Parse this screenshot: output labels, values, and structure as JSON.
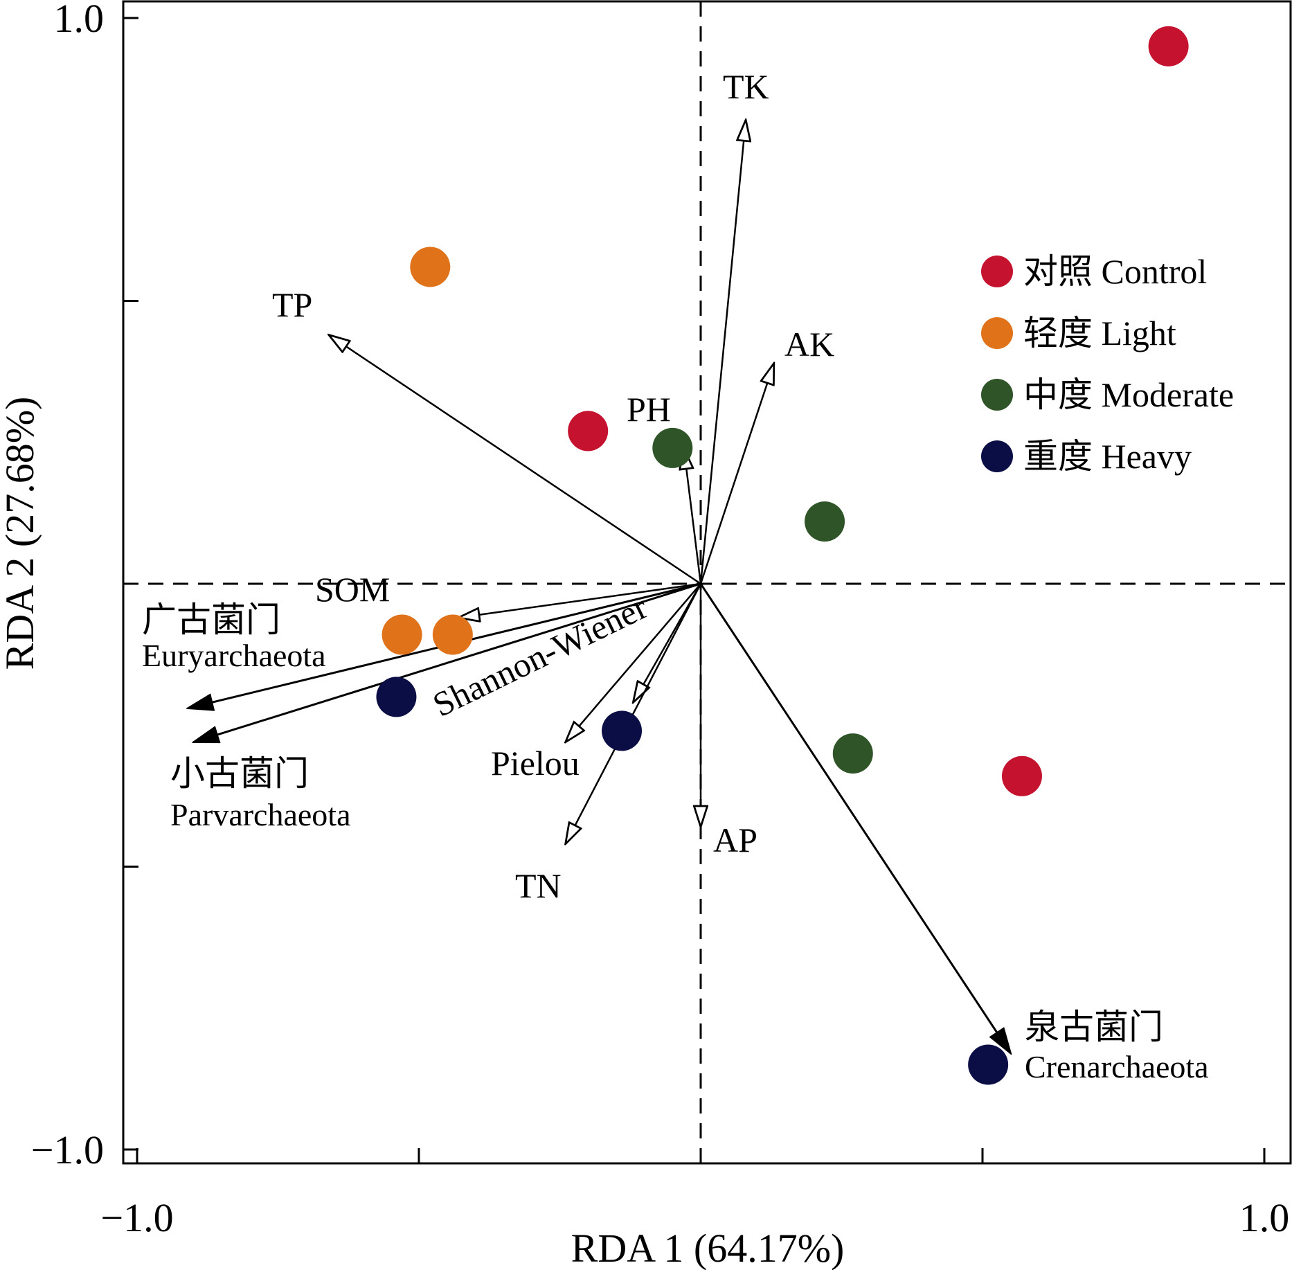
{
  "chart_data": {
    "type": "scatter",
    "subtype": "rda-biplot",
    "title": "",
    "xlabel": "RDA 1 (64.17%)",
    "ylabel": "RDA 2 (27.68%)",
    "xlim": [
      -1.0,
      1.0
    ],
    "ylim": [
      -1.0,
      1.0
    ],
    "x_tick_labels": [
      {
        "value": -1.0,
        "label": "−1.0"
      },
      {
        "value": 1.0,
        "label": "1.0"
      }
    ],
    "y_tick_labels": [
      {
        "value": 1.0,
        "label": "1.0"
      },
      {
        "value": -1.0,
        "label": "−1.0"
      }
    ],
    "x_minor_ticks": [
      -0.5,
      0.0,
      0.5
    ],
    "y_minor_ticks": [
      0.5,
      0.0,
      -0.5
    ],
    "grid": false,
    "reference_lines": {
      "x": 0.0,
      "y": 0.0,
      "style": "dashed"
    },
    "legend_position": "top-right",
    "series": [
      {
        "name": "对照 Control",
        "color": "#c4122f",
        "points": [
          {
            "x": 0.83,
            "y": 0.95
          },
          {
            "x": -0.2,
            "y": 0.27
          },
          {
            "x": 0.57,
            "y": -0.34
          }
        ]
      },
      {
        "name": "轻度 Light",
        "color": "#e0731a",
        "points": [
          {
            "x": -0.48,
            "y": 0.56
          },
          {
            "x": -0.53,
            "y": -0.09
          },
          {
            "x": -0.44,
            "y": -0.09
          }
        ]
      },
      {
        "name": "中度 Moderate",
        "color": "#2f5428",
        "points": [
          {
            "x": -0.05,
            "y": 0.24
          },
          {
            "x": 0.22,
            "y": 0.11
          },
          {
            "x": 0.27,
            "y": -0.3
          }
        ]
      },
      {
        "name": "重度 Heavy",
        "color": "#0b0e45",
        "points": [
          {
            "x": -0.54,
            "y": -0.2
          },
          {
            "x": -0.14,
            "y": -0.26
          },
          {
            "x": 0.51,
            "y": -0.85
          }
        ]
      }
    ],
    "environmental_arrows": [
      {
        "name": "TK",
        "x": 0.08,
        "y": 0.82
      },
      {
        "name": "AK",
        "x": 0.13,
        "y": 0.39
      },
      {
        "name": "PH",
        "x": -0.03,
        "y": 0.24
      },
      {
        "name": "TP",
        "x": -0.66,
        "y": 0.44
      },
      {
        "name": "SOM",
        "x": -0.43,
        "y": -0.06
      },
      {
        "name": "Shannon-Wiener",
        "x": -0.12,
        "y": -0.21
      },
      {
        "name": "Pielou",
        "x": -0.24,
        "y": -0.28
      },
      {
        "name": "TN",
        "x": -0.24,
        "y": -0.46
      },
      {
        "name": "AP",
        "x": 0.0,
        "y": -0.43
      }
    ],
    "species_arrows": [
      {
        "name_cn": "广古菌门",
        "name_en": "Euryarchaeota",
        "x": -0.91,
        "y": -0.22
      },
      {
        "name_cn": "小古菌门",
        "name_en": "Parvarchaeota",
        "x": -0.9,
        "y": -0.28
      },
      {
        "name_cn": "泉古菌门",
        "name_en": "Crenarchaeota",
        "x": 0.55,
        "y": -0.83
      }
    ]
  }
}
